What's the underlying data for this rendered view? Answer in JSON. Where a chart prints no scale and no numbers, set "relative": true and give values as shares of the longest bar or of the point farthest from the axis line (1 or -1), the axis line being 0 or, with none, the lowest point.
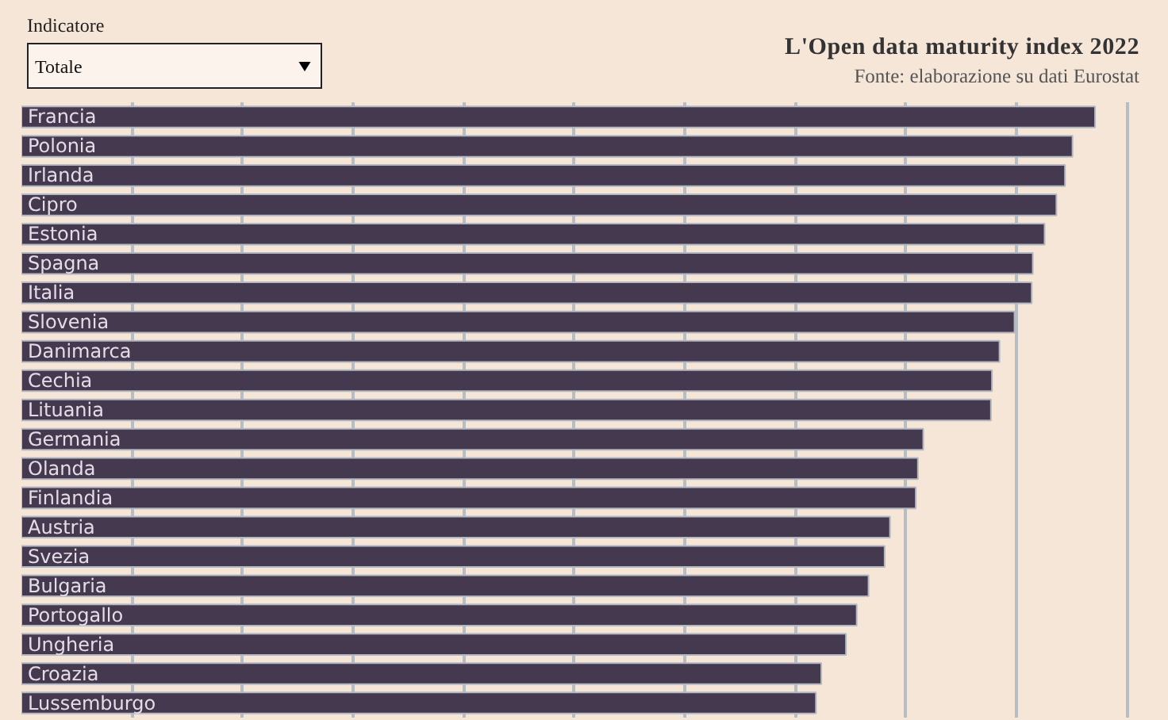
{
  "chart_data": {
    "type": "bar",
    "orientation": "horizontal",
    "relative": true,
    "title": "L'Open data maturity index 2022",
    "annotations": [
      "Indicatore",
      "Totale",
      "Fonte: elaborazione su dati Eurostat"
    ],
    "categories": [
      "Francia",
      "Polonia",
      "Irlanda",
      "Cipro",
      "Estonia",
      "Spagna",
      "Italia",
      "Slovenia",
      "Danimarca",
      "Cechia",
      "Lituania",
      "Germania",
      "Olanda",
      "Finlandia",
      "Austria",
      "Svezia",
      "Bulgaria",
      "Portogallo",
      "Ungheria",
      "Croazia",
      "Lussemburgo"
    ],
    "values": [
      1,
      0.979,
      0.972,
      0.964,
      0.953,
      0.942,
      0.941,
      0.925,
      0.911,
      0.904,
      0.903,
      0.84,
      0.835,
      0.833,
      0.809,
      0.804,
      0.789,
      0.778,
      0.768,
      0.745,
      0.74
    ],
    "color": "#45394f",
    "grid": "x"
  }
}
